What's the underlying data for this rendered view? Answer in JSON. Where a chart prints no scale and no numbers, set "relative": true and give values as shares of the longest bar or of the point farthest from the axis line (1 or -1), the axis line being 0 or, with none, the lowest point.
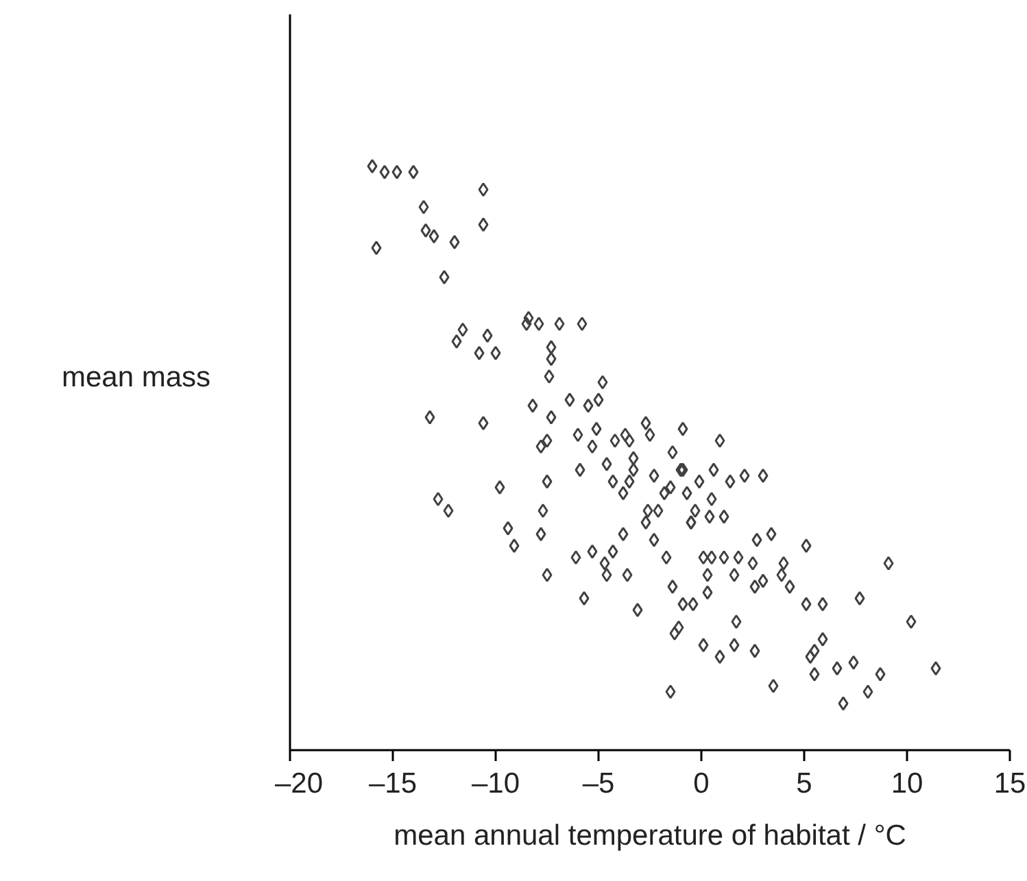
{
  "chart_data": {
    "type": "scatter",
    "xlabel": "mean annual temperature of habitat / °C",
    "ylabel": "mean mass",
    "relative": true,
    "xlim": [
      -20,
      15
    ],
    "xticks": [
      {
        "value": -20,
        "label": "–20"
      },
      {
        "value": -15,
        "label": "–15"
      },
      {
        "value": -10,
        "label": "–10"
      },
      {
        "value": -5,
        "label": "–5"
      },
      0,
      5,
      10,
      15
    ],
    "tick_labels": "x",
    "grid": false,
    "marker": "diamond",
    "series": [
      {
        "color": "#404040",
        "x": [
          -16.0,
          -15.4,
          -14.8,
          -14.0,
          -10.6,
          -13.5,
          -13.4,
          -13.0,
          -12.0,
          -10.6,
          -15.8,
          -12.5,
          -8.4,
          -8.5,
          -7.9,
          -6.9,
          -5.8,
          -11.6,
          -10.4,
          -11.9,
          -10.8,
          -10.0,
          -7.3,
          -7.3,
          -7.4,
          -4.8,
          -6.4,
          -5.5,
          -5.0,
          -8.2,
          -7.3,
          -13.2,
          -10.6,
          -5.1,
          -6.0,
          -7.5,
          -7.8,
          -3.7,
          -3.5,
          -2.5,
          -2.7,
          -0.9,
          -1.4,
          0.9,
          -5.3,
          -4.2,
          -4.6,
          -3.3,
          -3.8,
          -3.5,
          -5.9,
          -7.5,
          -9.8,
          -12.8,
          -12.3,
          -7.7,
          -9.4,
          -9.1,
          -7.8,
          -6.1,
          -7.5,
          -5.7,
          -3.8,
          -4.3,
          -5.3,
          -4.7,
          -2.3,
          -2.7,
          -2.6,
          -1.8,
          -2.1,
          -0.7,
          0.5,
          -0.1,
          0.4,
          1.1,
          -0.5,
          -0.3,
          1.4,
          3.0,
          -2.3,
          -0.9,
          -1.5,
          -1.0,
          0.6,
          2.1,
          -3.3,
          -4.3,
          -0.5,
          0.1,
          0.5,
          1.1,
          1.8,
          0.3,
          0.3,
          1.6,
          2.5,
          2.6,
          3.0,
          3.4,
          2.7,
          4.0,
          5.1,
          3.9,
          4.3,
          5.1,
          5.9,
          7.7,
          9.1,
          10.2,
          11.4,
          8.7,
          7.4,
          6.6,
          5.9,
          5.5,
          5.3,
          5.5,
          6.9,
          8.1,
          3.5,
          2.6,
          1.6,
          0.1,
          0.9,
          -0.9,
          -3.1,
          -3.6,
          -1.4,
          -1.7,
          -1.1,
          -1.3,
          -0.4,
          -4.6,
          -1.5,
          1.7
        ],
        "values": [
          1.0,
          0.99,
          0.99,
          0.99,
          0.96,
          0.93,
          0.89,
          0.88,
          0.87,
          0.9,
          0.86,
          0.81,
          0.74,
          0.73,
          0.73,
          0.73,
          0.73,
          0.72,
          0.71,
          0.7,
          0.68,
          0.68,
          0.69,
          0.67,
          0.64,
          0.63,
          0.6,
          0.59,
          0.6,
          0.59,
          0.57,
          0.57,
          0.56,
          0.55,
          0.54,
          0.53,
          0.52,
          0.54,
          0.53,
          0.54,
          0.56,
          0.55,
          0.51,
          0.53,
          0.52,
          0.53,
          0.49,
          0.48,
          0.44,
          0.46,
          0.48,
          0.46,
          0.45,
          0.43,
          0.41,
          0.41,
          0.38,
          0.35,
          0.37,
          0.33,
          0.3,
          0.26,
          0.37,
          0.34,
          0.34,
          0.32,
          0.36,
          0.39,
          0.41,
          0.44,
          0.41,
          0.44,
          0.43,
          0.46,
          0.4,
          0.4,
          0.39,
          0.41,
          0.46,
          0.47,
          0.47,
          0.48,
          0.45,
          0.48,
          0.48,
          0.47,
          0.5,
          0.46,
          0.39,
          0.33,
          0.33,
          0.33,
          0.33,
          0.3,
          0.27,
          0.3,
          0.32,
          0.28,
          0.29,
          0.37,
          0.36,
          0.32,
          0.35,
          0.3,
          0.28,
          0.25,
          0.25,
          0.26,
          0.32,
          0.22,
          0.14,
          0.13,
          0.15,
          0.14,
          0.19,
          0.17,
          0.16,
          0.13,
          0.08,
          0.1,
          0.11,
          0.17,
          0.18,
          0.18,
          0.16,
          0.25,
          0.24,
          0.3,
          0.28,
          0.33,
          0.21,
          0.2,
          0.25,
          0.3,
          0.1,
          0.22
        ]
      }
    ]
  }
}
